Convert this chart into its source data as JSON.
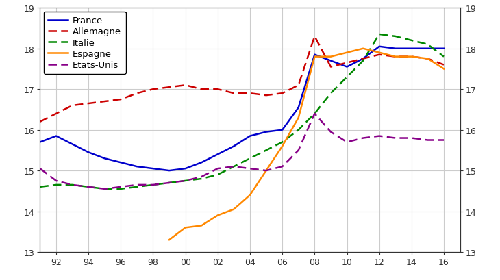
{
  "title": "",
  "ylim": [
    13,
    19
  ],
  "yticks": [
    13,
    14,
    15,
    16,
    17,
    18,
    19
  ],
  "grid": true,
  "background_color": "#ffffff",
  "series": {
    "France": {
      "color": "#0000cc",
      "linestyle": "solid",
      "linewidth": 1.8,
      "years": [
        1991,
        1992,
        1993,
        1994,
        1995,
        1996,
        1997,
        1998,
        1999,
        2000,
        2001,
        2002,
        2003,
        2004,
        2005,
        2006,
        2007,
        2008,
        2009,
        2010,
        2011,
        2012,
        2013,
        2014,
        2015,
        2016
      ],
      "values": [
        15.7,
        15.85,
        15.65,
        15.45,
        15.3,
        15.2,
        15.1,
        15.05,
        15.0,
        15.05,
        15.2,
        15.4,
        15.6,
        15.85,
        15.95,
        16.0,
        16.55,
        17.85,
        17.7,
        17.55,
        17.75,
        18.05,
        18.0,
        18.0,
        18.0,
        18.0
      ]
    },
    "Allemagne": {
      "color": "#cc0000",
      "linestyle": "dashed",
      "linewidth": 1.8,
      "years": [
        1991,
        1992,
        1993,
        1994,
        1995,
        1996,
        1997,
        1998,
        1999,
        2000,
        2001,
        2002,
        2003,
        2004,
        2005,
        2006,
        2007,
        2008,
        2009,
        2010,
        2011,
        2012,
        2013,
        2014,
        2015,
        2016
      ],
      "values": [
        16.2,
        16.4,
        16.6,
        16.65,
        16.7,
        16.75,
        16.9,
        17.0,
        17.05,
        17.1,
        17.0,
        17.0,
        16.9,
        16.9,
        16.85,
        16.9,
        17.1,
        18.3,
        17.55,
        17.65,
        17.75,
        17.85,
        17.8,
        17.8,
        17.75,
        17.6
      ]
    },
    "Italie": {
      "color": "#008800",
      "linestyle": "dashed",
      "linewidth": 1.8,
      "years": [
        1991,
        1992,
        1993,
        1994,
        1995,
        1996,
        1997,
        1998,
        1999,
        2000,
        2001,
        2002,
        2003,
        2004,
        2005,
        2006,
        2007,
        2008,
        2009,
        2010,
        2011,
        2012,
        2013,
        2014,
        2015,
        2016
      ],
      "values": [
        14.6,
        14.65,
        14.65,
        14.6,
        14.55,
        14.55,
        14.6,
        14.65,
        14.7,
        14.75,
        14.8,
        14.9,
        15.1,
        15.3,
        15.5,
        15.7,
        16.0,
        16.4,
        16.9,
        17.3,
        17.7,
        18.35,
        18.3,
        18.2,
        18.1,
        17.8
      ]
    },
    "Espagne": {
      "color": "#ff8800",
      "linestyle": "solid",
      "linewidth": 1.8,
      "years": [
        1999,
        2000,
        2001,
        2002,
        2003,
        2004,
        2005,
        2006,
        2007,
        2008,
        2009,
        2010,
        2011,
        2012,
        2013,
        2014,
        2015,
        2016
      ],
      "values": [
        13.3,
        13.6,
        13.65,
        13.9,
        14.05,
        14.4,
        15.0,
        15.6,
        16.3,
        17.8,
        17.8,
        17.9,
        18.0,
        17.9,
        17.8,
        17.8,
        17.75,
        17.5
      ]
    },
    "Etats-Unis": {
      "color": "#880088",
      "linestyle": "dashed",
      "linewidth": 1.8,
      "years": [
        1991,
        1992,
        1993,
        1994,
        1995,
        1996,
        1997,
        1998,
        1999,
        2000,
        2001,
        2002,
        2003,
        2004,
        2005,
        2006,
        2007,
        2008,
        2009,
        2010,
        2011,
        2012,
        2013,
        2014,
        2015,
        2016
      ],
      "values": [
        15.05,
        14.75,
        14.65,
        14.6,
        14.55,
        14.6,
        14.65,
        14.65,
        14.7,
        14.75,
        14.85,
        15.05,
        15.1,
        15.05,
        15.0,
        15.1,
        15.5,
        16.4,
        15.95,
        15.7,
        15.8,
        15.85,
        15.8,
        15.8,
        15.75,
        15.75
      ]
    }
  },
  "xtick_positions": [
    1992,
    1994,
    1996,
    1998,
    2000,
    2002,
    2004,
    2006,
    2008,
    2010,
    2012,
    2014,
    2016
  ],
  "xtick_labels": [
    "92",
    "94",
    "96",
    "98",
    "00",
    "02",
    "04",
    "06",
    "08",
    "10",
    "12",
    "14",
    "16"
  ],
  "tick_fontsize": 9,
  "legend_fontsize": 9.5
}
